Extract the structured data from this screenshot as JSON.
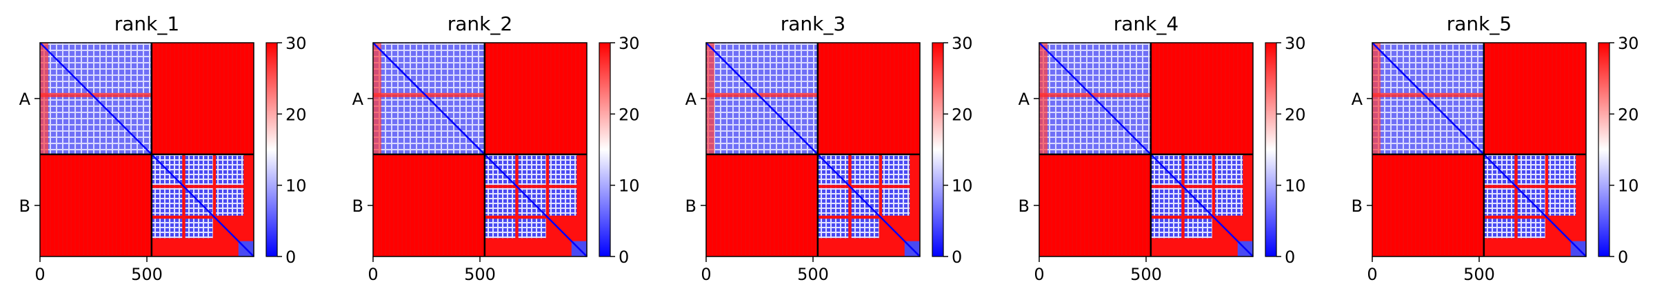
{
  "chart_data": [
    {
      "type": "heatmap",
      "title": "rank_1",
      "chain_labels": [
        "A",
        "B"
      ],
      "chain_boundary": 522,
      "x_ticks": [
        0,
        500
      ],
      "xlim": [
        0,
        1000
      ],
      "colorbar": {
        "min": 0,
        "max": 30,
        "ticks": [
          0,
          10,
          20,
          30
        ],
        "colormap": "bwr"
      }
    },
    {
      "type": "heatmap",
      "title": "rank_2",
      "chain_labels": [
        "A",
        "B"
      ],
      "chain_boundary": 522,
      "x_ticks": [
        0,
        500
      ],
      "xlim": [
        0,
        1000
      ],
      "colorbar": {
        "min": 0,
        "max": 30,
        "ticks": [
          0,
          10,
          20,
          30
        ],
        "colormap": "bwr"
      }
    },
    {
      "type": "heatmap",
      "title": "rank_3",
      "chain_labels": [
        "A",
        "B"
      ],
      "chain_boundary": 522,
      "x_ticks": [
        0,
        500
      ],
      "xlim": [
        0,
        1000
      ],
      "colorbar": {
        "min": 0,
        "max": 30,
        "ticks": [
          0,
          10,
          20,
          30
        ],
        "colormap": "bwr"
      }
    },
    {
      "type": "heatmap",
      "title": "rank_4",
      "chain_labels": [
        "A",
        "B"
      ],
      "chain_boundary": 522,
      "x_ticks": [
        0,
        500
      ],
      "xlim": [
        0,
        1000
      ],
      "colorbar": {
        "min": 0,
        "max": 30,
        "ticks": [
          0,
          10,
          20,
          30
        ],
        "colormap": "bwr"
      }
    },
    {
      "type": "heatmap",
      "title": "rank_5",
      "chain_labels": [
        "A",
        "B"
      ],
      "chain_boundary": 522,
      "x_ticks": [
        0,
        500
      ],
      "xlim": [
        0,
        1000
      ],
      "colorbar": {
        "min": 0,
        "max": 30,
        "ticks": [
          0,
          10,
          20,
          30
        ],
        "colormap": "bwr"
      }
    }
  ]
}
